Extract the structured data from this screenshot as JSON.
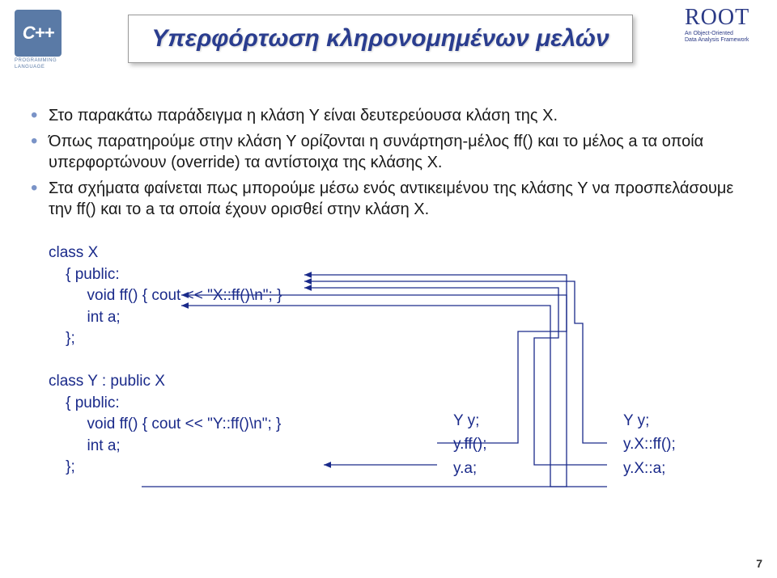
{
  "logoLeft": {
    "main": "C++",
    "sub1": "PROGRAMMING",
    "sub2": "LANGUAGE"
  },
  "logoRight": {
    "main": "ROOT",
    "sub1": "An Object-Oriented",
    "sub2": "Data Analysis Framework"
  },
  "title": "Υπερφόρτωση κληρονομημένων μελών",
  "bullets": [
    "Στο παρακάτω παράδειγμα η κλάση Υ είναι δευτερεύουσα κλάση της Χ.",
    "Όπως παρατηρούμε στην κλάση Υ ορίζονται η συνάρτηση-μέλος ff() και το μέλος a τα οποία υπερφορτώνουν (override) τα αντίστοιχα της κλάσης Χ.",
    "Στα σχήματα φαίνεται πως μπορούμε μέσω ενός αντικειμένου της κλάσης Υ να προσπελάσουμε την ff() και το a τα οποία έχουν ορισθεί στην κλάση Χ."
  ],
  "code": {
    "classX": {
      "l1": "class X",
      "l2": "    { public:",
      "l3": "         void ff() { cout << \"X::ff()\\n\"; }",
      "l4": "         int a;",
      "l5": "    };"
    },
    "classY": {
      "l1": "class Y : public X",
      "l2": "    { public:",
      "l3": "         void ff() { cout << \"Y::ff()\\n\"; }",
      "l4": "         int a;",
      "l5": "    };"
    }
  },
  "snippetA": {
    "l1": "Y y;",
    "l2": "y.ff();",
    "l3": "y.a;"
  },
  "snippetB": {
    "l1": "Y y;",
    "l2": "y.X::ff();",
    "l3": "y.X::a;"
  },
  "arrows": {
    "strokeColor": "#1a2a8a",
    "strokeWidth": 1.3,
    "paths": [
      "M 540 548  L 640 548  L 640 410  L 700 410  L 700 340  L 376 340",
      "M 540 575  L 400 575",
      "M 175 602  L 700 602  L 700 365  L 224 365",
      "M 750 548  L 720 548  L 720 400  L 710 400  L 710 348  L 376 348",
      "M 750 575  L 660 575  L 660 418  L 690 418  L 690 356  L 376 356",
      "M 750 602  L 680 602  L 680 378  L 224 378"
    ]
  },
  "pageNumber": "7",
  "bg": "#ffffff"
}
